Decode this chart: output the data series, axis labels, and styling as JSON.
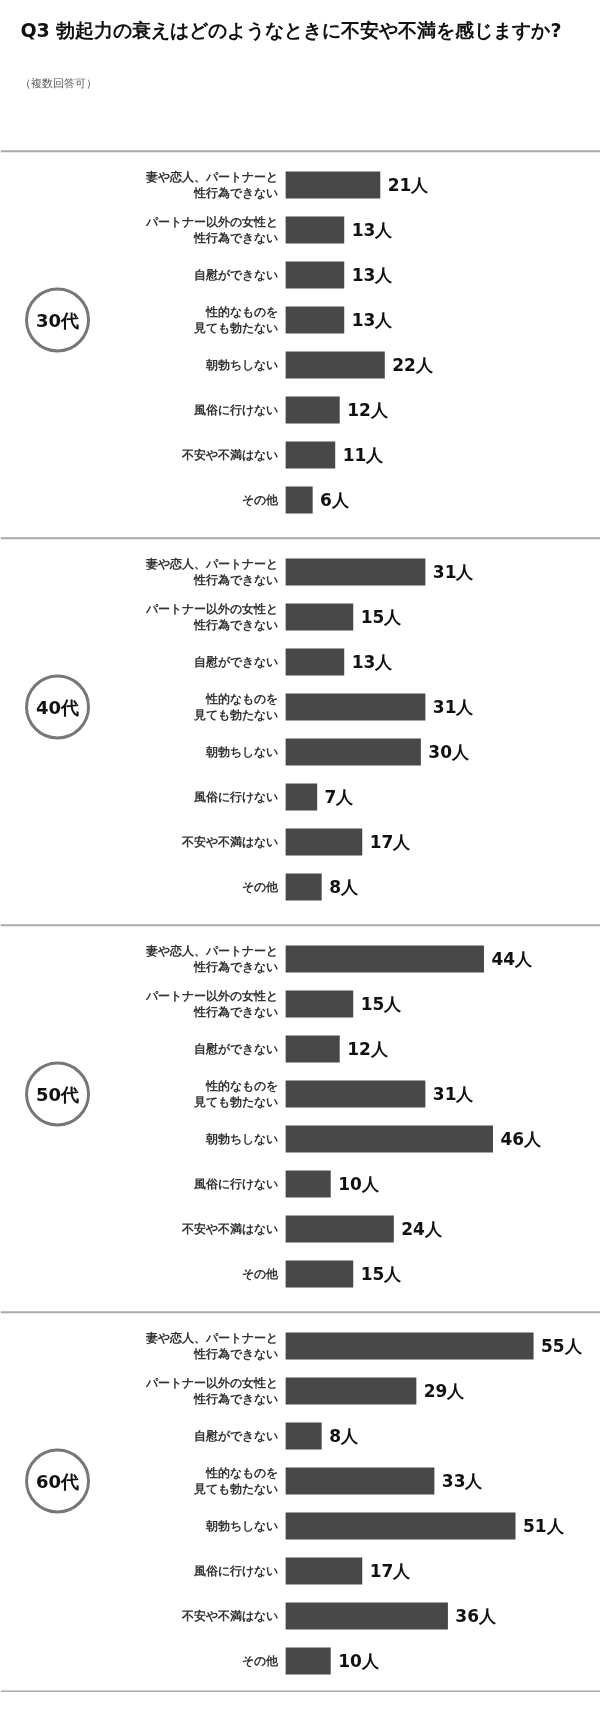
{
  "chart_data": [
    {
      "type": "bar",
      "orientation": "horizontal",
      "title": "Q3 勃起力の衰えはどのようなときに不安や不満を感じますか?",
      "subtitle": "（複数回答可）",
      "ylabel": "30代",
      "categories": [
        "妻や恋人、パートナーと性行為できない",
        "パートナー以外の女性と性行為できない",
        "自慰ができない",
        "性的なものを見ても勃たない",
        "朝勃ちしない",
        "風俗に行けない",
        "不安や不満はない",
        "その他"
      ],
      "values": [
        21,
        13,
        13,
        13,
        22,
        12,
        11,
        6
      ],
      "value_labels": [
        "21人",
        "13人",
        "13人",
        "13人",
        "22人",
        "12人",
        "11人",
        "6人"
      ],
      "color": "#484848"
    },
    {
      "type": "bar",
      "orientation": "horizontal",
      "ylabel": "40代",
      "categories": [
        "妻や恋人、パートナーと性行為できない",
        "パートナー以外の女性と性行為できない",
        "自慰ができない",
        "性的なものを見ても勃たない",
        "朝勃ちしない",
        "風俗に行けない",
        "不安や不満はない",
        "その他"
      ],
      "values": [
        31,
        15,
        13,
        31,
        30,
        7,
        17,
        8
      ],
      "value_labels": [
        "31人",
        "15人",
        "13人",
        "31人",
        "30人",
        "7人",
        "17人",
        "8人"
      ],
      "color": "#484848"
    },
    {
      "type": "bar",
      "orientation": "horizontal",
      "ylabel": "50代",
      "categories": [
        "妻や恋人、パートナーと性行為できない",
        "パートナー以外の女性と性行為できない",
        "自慰ができない",
        "性的なものを見ても勃たない",
        "朝勃ちしない",
        "風俗に行けない",
        "不安や不満はない",
        "その他"
      ],
      "values": [
        44,
        15,
        12,
        31,
        46,
        10,
        24,
        15
      ],
      "value_labels": [
        "44人",
        "15人",
        "12人",
        "31人",
        "46人",
        "10人",
        "24人",
        "15人"
      ],
      "color": "#484848"
    },
    {
      "type": "bar",
      "orientation": "horizontal",
      "ylabel": "60代",
      "categories": [
        "妻や恋人、パートナーと性行為できない",
        "パートナー以外の女性と性行為できない",
        "自慰ができない",
        "性的なものを見ても勃たない",
        "朝勃ちしない",
        "風俗に行けない",
        "不安や不満はない",
        "その他"
      ],
      "values": [
        55,
        29,
        8,
        33,
        51,
        17,
        36,
        10
      ],
      "value_labels": [
        "55人",
        "29人",
        "8人",
        "33人",
        "51人",
        "17人",
        "36人",
        "10人"
      ],
      "color": "#484848"
    }
  ]
}
